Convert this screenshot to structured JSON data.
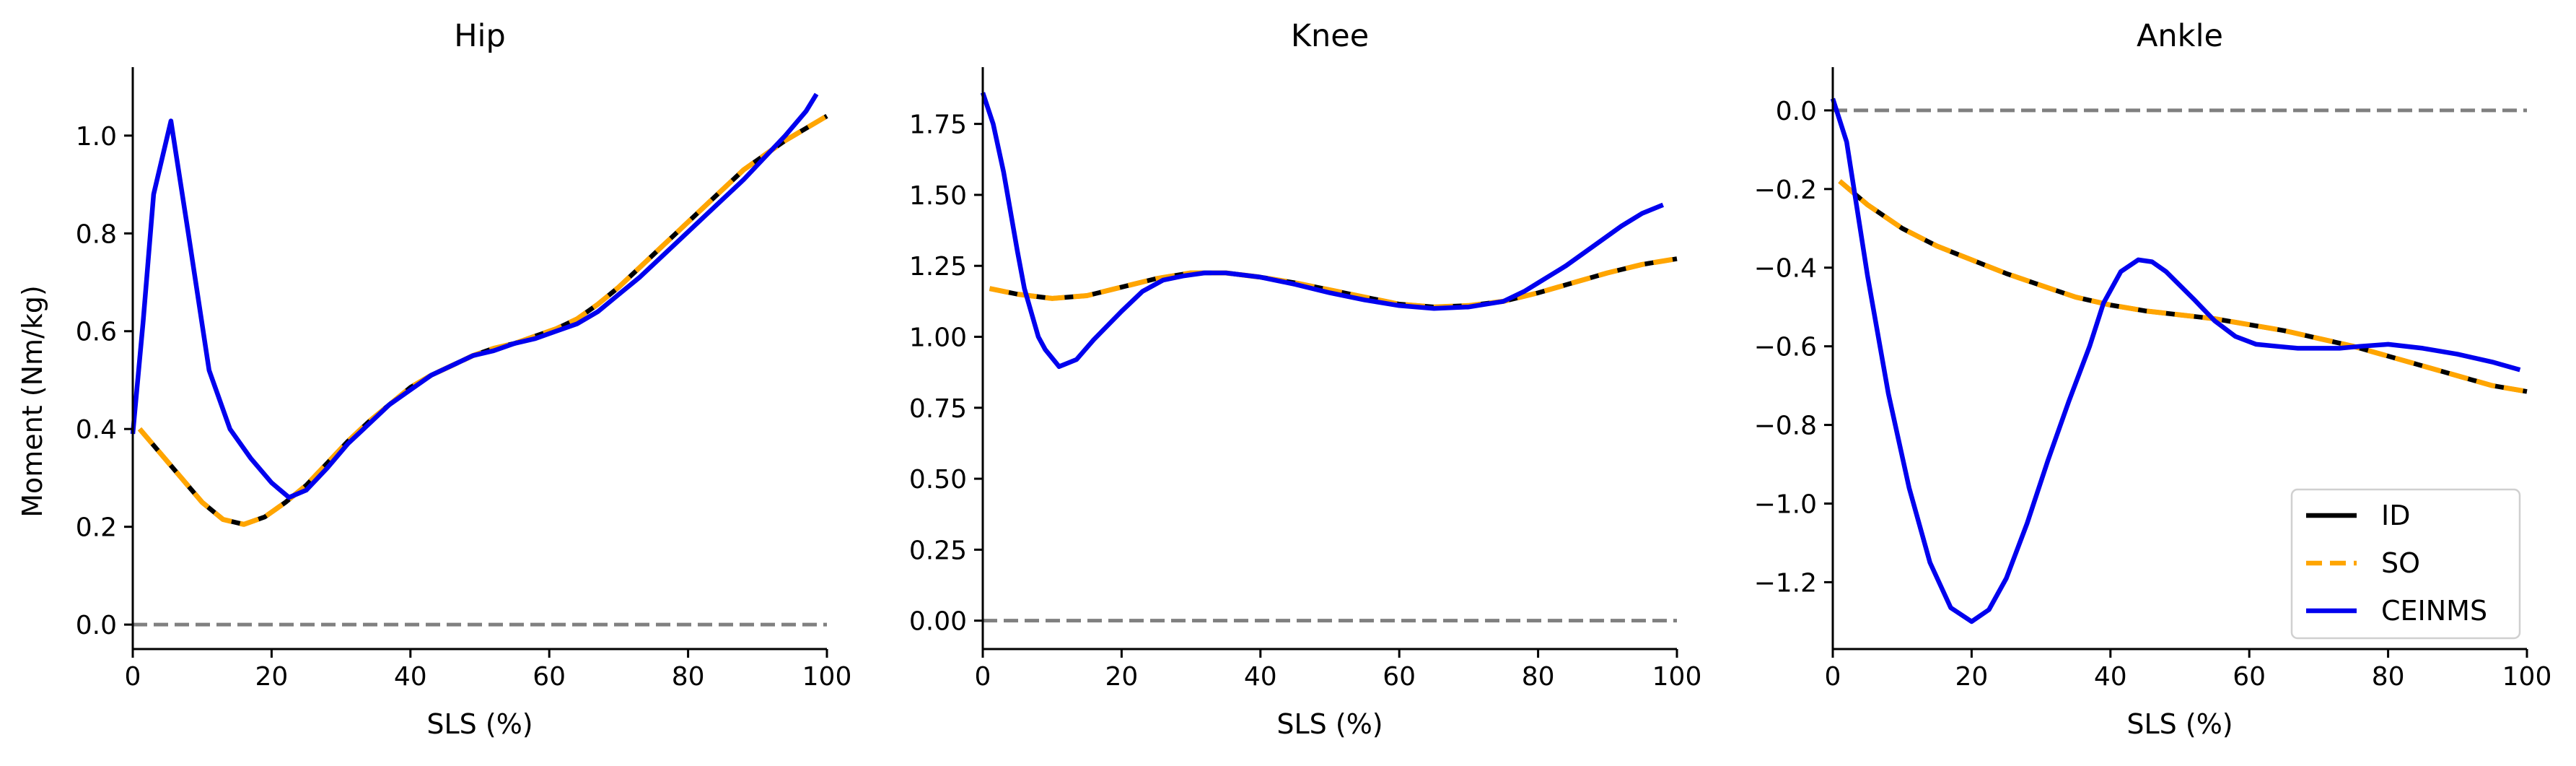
{
  "figure": {
    "ylabel": "Moment (Nm/kg)",
    "legend": {
      "placement": "lower-right of Ankle panel",
      "entries": [
        {
          "label": "ID",
          "color": "#000000",
          "style": "solid"
        },
        {
          "label": "SO",
          "color": "#FFA500",
          "style": "dashed"
        },
        {
          "label": "CEINMS",
          "color": "#0000EE",
          "style": "solid"
        }
      ]
    },
    "zero_line_color": "#808080"
  },
  "chart_data": [
    {
      "type": "line",
      "title": "Hip",
      "xlabel": "SLS (%)",
      "ylabel": "Moment (Nm/kg)",
      "xlim": [
        0,
        100
      ],
      "ylim": [
        -0.05,
        1.14
      ],
      "xticks": [
        "0",
        "20",
        "40",
        "60",
        "80",
        "100"
      ],
      "yticks": [
        "0.0",
        "0.2",
        "0.4",
        "0.6",
        "0.8",
        "1.0"
      ],
      "grid": false,
      "zero_line": true,
      "series": [
        {
          "name": "ID",
          "color": "#000000",
          "dashed": false,
          "x": [
            1,
            4,
            7,
            10,
            13,
            16,
            19,
            22,
            25,
            28,
            31,
            34,
            37,
            40,
            43,
            46,
            49,
            52,
            55,
            58,
            61,
            64,
            67,
            70,
            73,
            76,
            79,
            82,
            85,
            88,
            91,
            94,
            97,
            100
          ],
          "y": [
            0.4,
            0.35,
            0.3,
            0.25,
            0.215,
            0.205,
            0.22,
            0.25,
            0.285,
            0.33,
            0.375,
            0.415,
            0.45,
            0.485,
            0.51,
            0.53,
            0.55,
            0.565,
            0.575,
            0.59,
            0.605,
            0.625,
            0.655,
            0.69,
            0.73,
            0.77,
            0.81,
            0.85,
            0.89,
            0.93,
            0.96,
            0.99,
            1.015,
            1.04
          ]
        },
        {
          "name": "SO",
          "color": "#FFA500",
          "dashed": true,
          "x": [
            1,
            4,
            7,
            10,
            13,
            16,
            19,
            22,
            25,
            28,
            31,
            34,
            37,
            40,
            43,
            46,
            49,
            52,
            55,
            58,
            61,
            64,
            67,
            70,
            73,
            76,
            79,
            82,
            85,
            88,
            91,
            94,
            97,
            100
          ],
          "y": [
            0.4,
            0.35,
            0.3,
            0.25,
            0.215,
            0.205,
            0.22,
            0.25,
            0.285,
            0.33,
            0.375,
            0.415,
            0.45,
            0.485,
            0.51,
            0.53,
            0.55,
            0.565,
            0.575,
            0.59,
            0.605,
            0.625,
            0.655,
            0.69,
            0.73,
            0.77,
            0.81,
            0.85,
            0.89,
            0.93,
            0.96,
            0.99,
            1.015,
            1.04
          ]
        },
        {
          "name": "CEINMS",
          "color": "#0000EE",
          "dashed": false,
          "x": [
            0,
            1.5,
            3,
            5.5,
            8,
            11,
            14,
            17,
            20,
            22.5,
            25,
            28,
            31,
            34,
            37,
            40,
            43,
            46,
            49,
            52,
            55,
            58,
            61,
            64,
            67,
            70,
            73,
            76,
            79,
            82,
            85,
            88,
            91,
            94,
            97,
            98.5
          ],
          "y": [
            0.39,
            0.62,
            0.88,
            1.03,
            0.8,
            0.52,
            0.4,
            0.34,
            0.29,
            0.26,
            0.275,
            0.32,
            0.37,
            0.41,
            0.45,
            0.48,
            0.51,
            0.53,
            0.55,
            0.56,
            0.575,
            0.585,
            0.6,
            0.615,
            0.64,
            0.675,
            0.71,
            0.75,
            0.79,
            0.83,
            0.87,
            0.91,
            0.955,
            1.0,
            1.05,
            1.085
          ]
        }
      ]
    },
    {
      "type": "line",
      "title": "Knee",
      "xlabel": "SLS (%)",
      "xlim": [
        0,
        100
      ],
      "ylim": [
        -0.1,
        1.95
      ],
      "xticks": [
        "0",
        "20",
        "40",
        "60",
        "80",
        "100"
      ],
      "yticks": [
        "0.00",
        "0.25",
        "0.50",
        "0.75",
        "1.00",
        "1.25",
        "1.50",
        "1.75"
      ],
      "grid": false,
      "zero_line": true,
      "series": [
        {
          "name": "ID",
          "color": "#000000",
          "dashed": false,
          "x": [
            1,
            5,
            10,
            15,
            20,
            25,
            30,
            35,
            40,
            45,
            50,
            55,
            60,
            65,
            70,
            75,
            80,
            85,
            90,
            95,
            100
          ],
          "y": [
            1.17,
            1.15,
            1.135,
            1.145,
            1.175,
            1.205,
            1.225,
            1.225,
            1.21,
            1.19,
            1.165,
            1.14,
            1.115,
            1.105,
            1.11,
            1.125,
            1.155,
            1.19,
            1.225,
            1.255,
            1.275
          ]
        },
        {
          "name": "SO",
          "color": "#FFA500",
          "dashed": true,
          "x": [
            1,
            5,
            10,
            15,
            20,
            25,
            30,
            35,
            40,
            45,
            50,
            55,
            60,
            65,
            70,
            75,
            80,
            85,
            90,
            95,
            100
          ],
          "y": [
            1.17,
            1.15,
            1.135,
            1.145,
            1.175,
            1.205,
            1.225,
            1.225,
            1.21,
            1.19,
            1.165,
            1.14,
            1.115,
            1.105,
            1.11,
            1.125,
            1.155,
            1.19,
            1.225,
            1.255,
            1.275
          ]
        },
        {
          "name": "CEINMS",
          "color": "#0000EE",
          "dashed": false,
          "x": [
            0,
            1.5,
            3,
            5,
            6,
            8,
            9,
            11,
            13.5,
            16,
            20,
            23,
            26,
            29,
            32,
            35,
            40,
            45,
            50,
            55,
            60,
            65,
            70,
            75,
            78,
            80,
            84,
            88,
            92,
            95,
            98
          ],
          "y": [
            1.86,
            1.75,
            1.58,
            1.3,
            1.17,
            1.0,
            0.955,
            0.895,
            0.92,
            0.99,
            1.09,
            1.16,
            1.2,
            1.215,
            1.225,
            1.225,
            1.21,
            1.185,
            1.155,
            1.13,
            1.11,
            1.1,
            1.105,
            1.125,
            1.16,
            1.19,
            1.25,
            1.32,
            1.39,
            1.435,
            1.465
          ]
        }
      ]
    },
    {
      "type": "line",
      "title": "Ankle",
      "xlabel": "SLS (%)",
      "xlim": [
        0,
        100
      ],
      "ylim": [
        -1.37,
        0.11
      ],
      "xticks": [
        "0",
        "20",
        "40",
        "60",
        "80",
        "100"
      ],
      "yticks": [
        "0.0",
        "−0.2",
        "−0.4",
        "−0.6",
        "−0.8",
        "−1.0",
        "−1.2"
      ],
      "grid": false,
      "zero_line": true,
      "series": [
        {
          "name": "ID",
          "color": "#000000",
          "dashed": false,
          "x": [
            1,
            5,
            10,
            15,
            20,
            25,
            30,
            35,
            40,
            45,
            50,
            55,
            60,
            65,
            70,
            75,
            80,
            85,
            90,
            95,
            100
          ],
          "y": [
            -0.18,
            -0.24,
            -0.3,
            -0.345,
            -0.38,
            -0.415,
            -0.445,
            -0.475,
            -0.495,
            -0.51,
            -0.52,
            -0.53,
            -0.545,
            -0.56,
            -0.58,
            -0.6,
            -0.625,
            -0.65,
            -0.675,
            -0.7,
            -0.715
          ]
        },
        {
          "name": "SO",
          "color": "#FFA500",
          "dashed": true,
          "x": [
            1,
            5,
            10,
            15,
            20,
            25,
            30,
            35,
            40,
            45,
            50,
            55,
            60,
            65,
            70,
            75,
            80,
            85,
            90,
            95,
            100
          ],
          "y": [
            -0.18,
            -0.24,
            -0.3,
            -0.345,
            -0.38,
            -0.415,
            -0.445,
            -0.475,
            -0.495,
            -0.51,
            -0.52,
            -0.53,
            -0.545,
            -0.56,
            -0.58,
            -0.6,
            -0.625,
            -0.65,
            -0.675,
            -0.7,
            -0.715
          ]
        },
        {
          "name": "CEINMS",
          "color": "#0000EE",
          "dashed": false,
          "x": [
            0,
            2,
            5,
            8,
            11,
            14,
            17,
            20,
            22.5,
            25,
            28,
            31,
            34,
            37,
            39,
            41.5,
            44,
            46,
            48,
            52,
            55,
            58,
            61,
            64,
            67,
            70,
            73,
            76,
            80,
            85,
            90,
            95,
            99
          ],
          "y": [
            0.03,
            -0.08,
            -0.42,
            -0.72,
            -0.96,
            -1.15,
            -1.265,
            -1.3,
            -1.27,
            -1.19,
            -1.05,
            -0.89,
            -0.74,
            -0.6,
            -0.49,
            -0.41,
            -0.38,
            -0.385,
            -0.41,
            -0.48,
            -0.535,
            -0.575,
            -0.595,
            -0.6,
            -0.605,
            -0.605,
            -0.605,
            -0.6,
            -0.595,
            -0.605,
            -0.62,
            -0.64,
            -0.66
          ]
        }
      ]
    }
  ]
}
